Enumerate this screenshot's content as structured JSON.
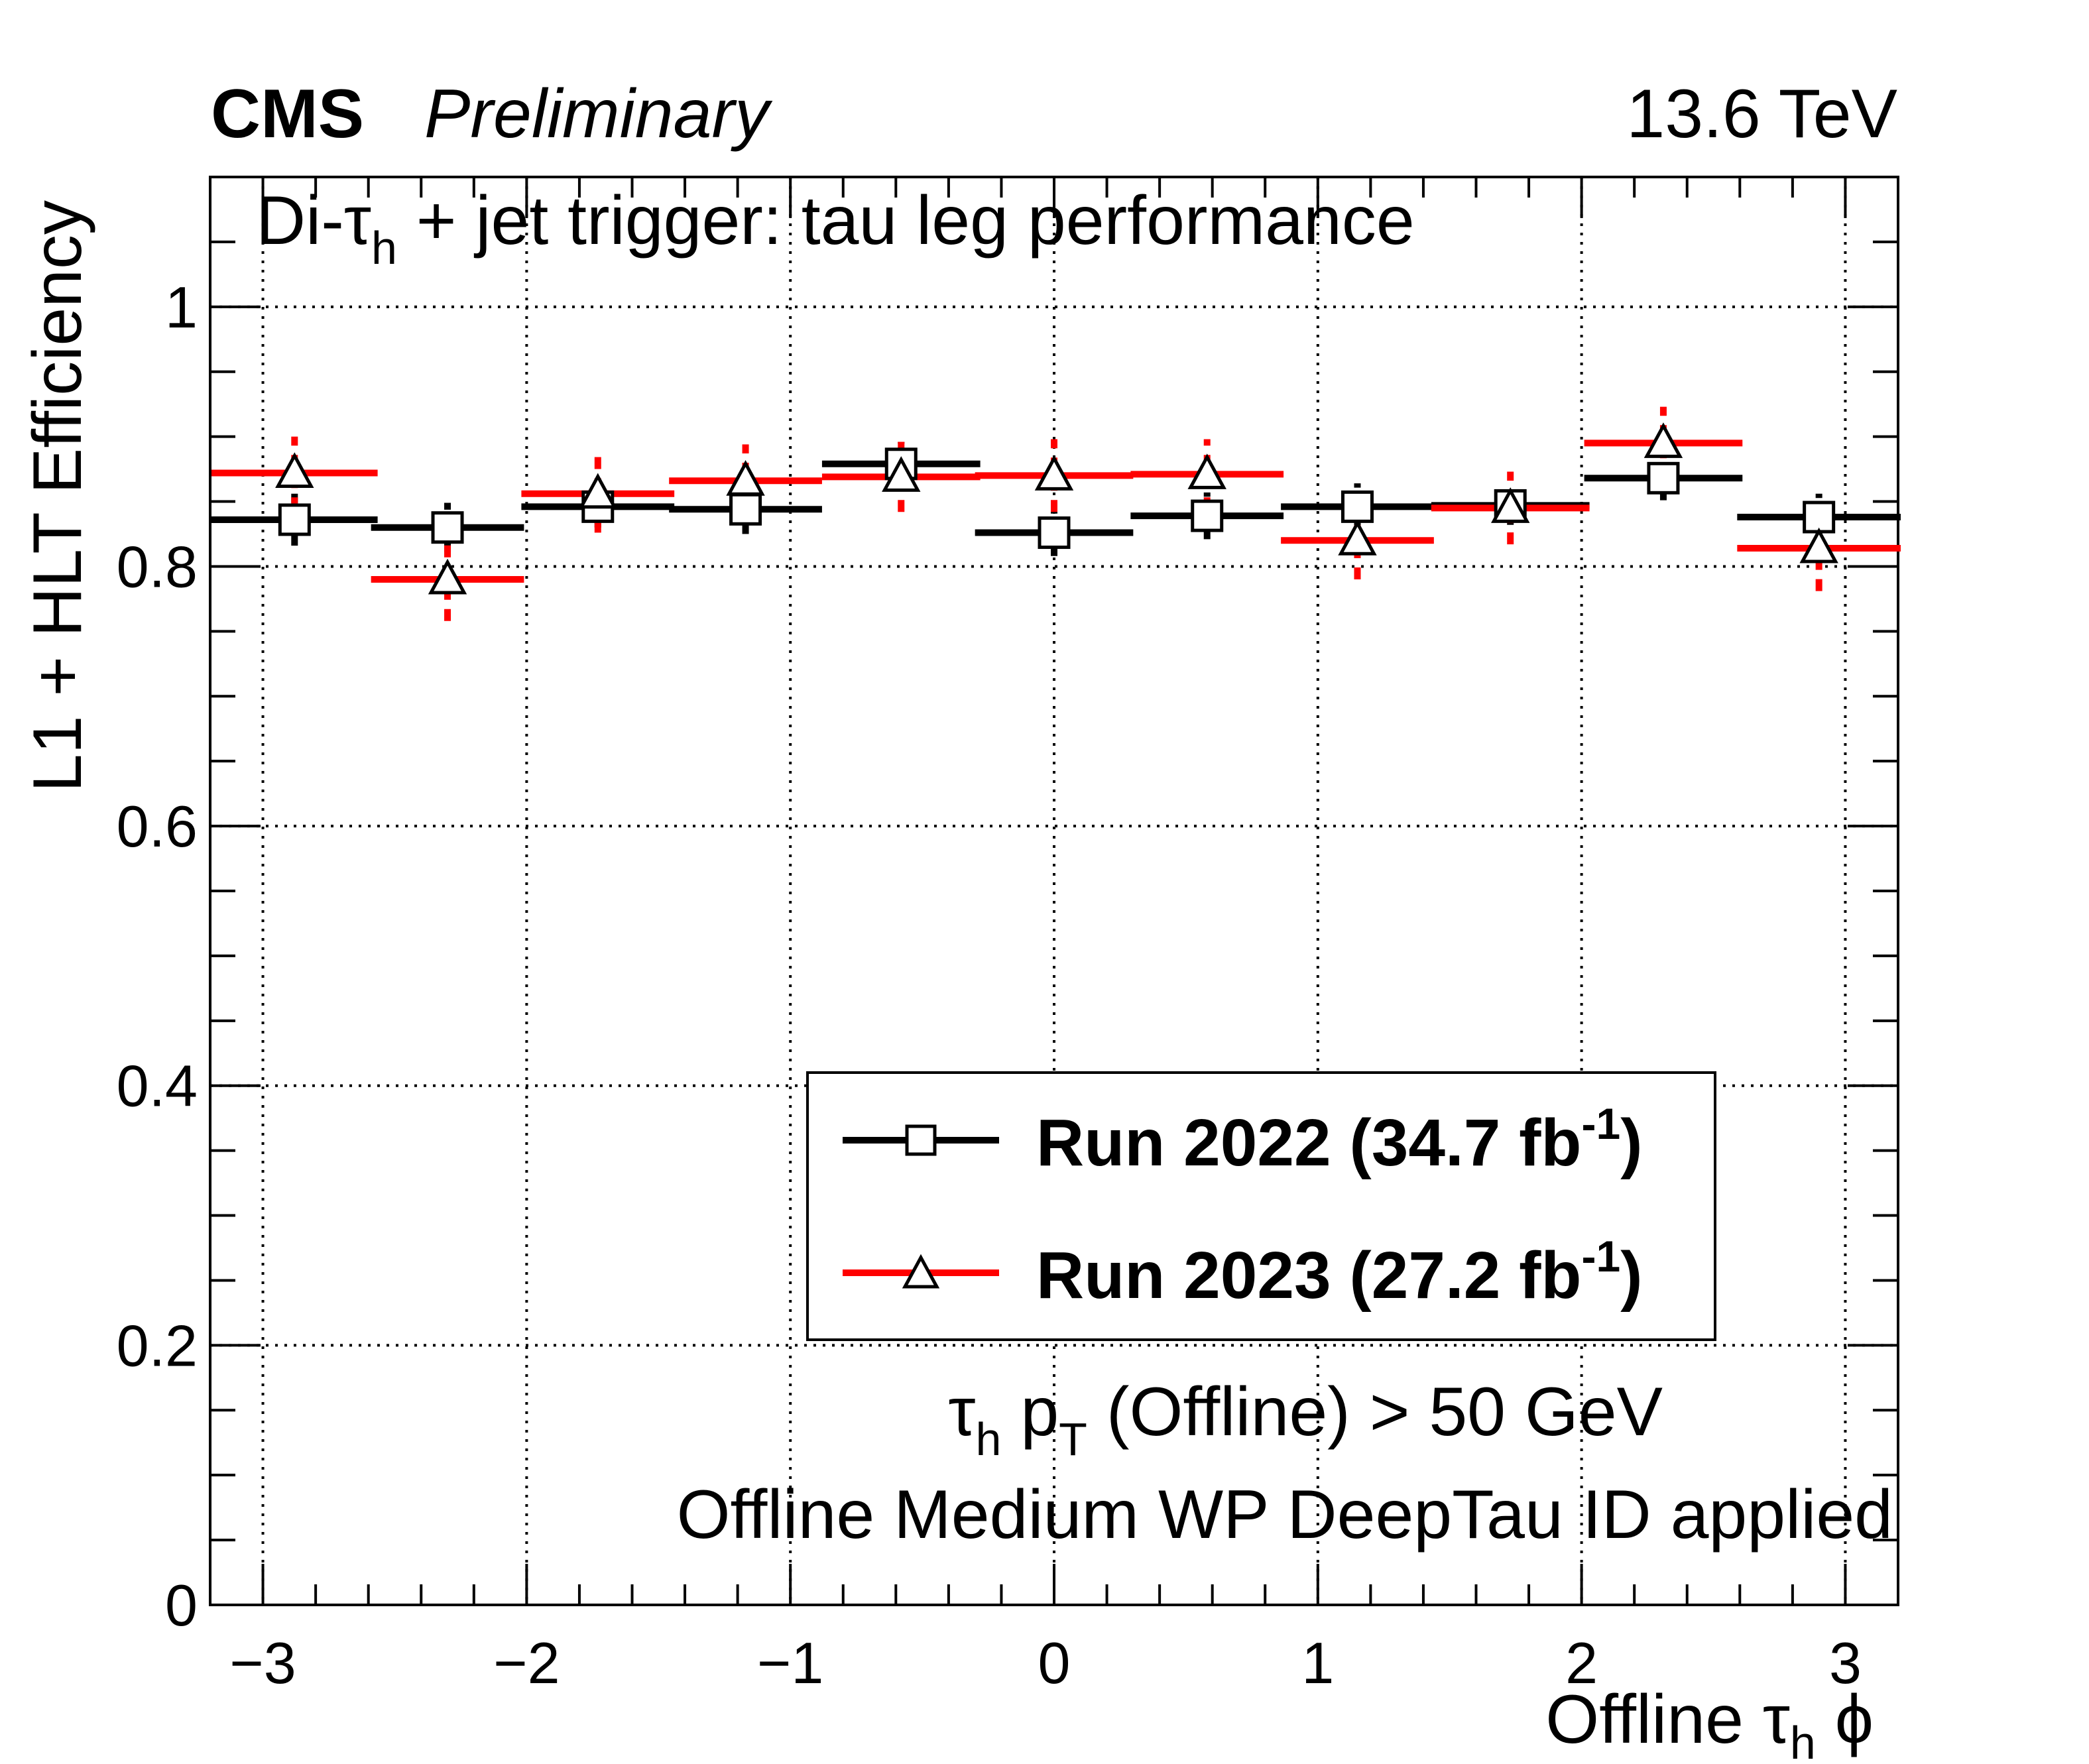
{
  "header": {
    "experiment": "CMS",
    "status": "Preliminary",
    "energy": "13.6 TeV"
  },
  "colors": {
    "series_2022": "#000000",
    "series_2023": "#ff0000"
  },
  "chart_data": {
    "type": "scatter",
    "title": "Di-τh + jet trigger: tau leg performance",
    "title_parts": {
      "prefix": "Di-τ",
      "sub": "h",
      "suffix": " + jet trigger: tau leg performance"
    },
    "xlabel": "Offline τh ϕ",
    "xlabel_parts": {
      "prefix": "Offline τ",
      "sub": "h",
      "suffix": " ϕ"
    },
    "ylabel": "L1 + HLT Efficiency",
    "xlim": [
      -3.2,
      3.2
    ],
    "ylim": [
      0,
      1.1
    ],
    "xticks": [
      -3,
      -2,
      -1,
      0,
      1,
      2,
      3
    ],
    "xtick_labels": [
      "−3",
      "−2",
      "−1",
      "0",
      "1",
      "2",
      "3"
    ],
    "yticks": [
      0,
      0.2,
      0.4,
      0.6,
      0.8,
      1
    ],
    "ytick_labels": [
      "0",
      "0.2",
      "0.4",
      "0.6",
      "0.8",
      "1"
    ],
    "grid": true,
    "legend_position": "center-right",
    "series": [
      {
        "name": "Run 2022 (34.7 fb-1)",
        "label_main": "Run 2022 (34.7 fb",
        "label_sup": "-1",
        "label_end": ")",
        "marker": "open-square",
        "color": "#000000",
        "x": [
          -2.88,
          -2.3,
          -1.73,
          -1.17,
          -0.58,
          0.0,
          0.58,
          1.15,
          1.73,
          2.31,
          2.9
        ],
        "xerr": [
          0.315,
          0.29,
          0.29,
          0.29,
          0.3,
          0.3,
          0.29,
          0.29,
          0.3,
          0.3,
          0.31
        ],
        "y": [
          0.836,
          0.83,
          0.846,
          0.844,
          0.879,
          0.826,
          0.839,
          0.846,
          0.847,
          0.868,
          0.838
        ],
        "yerr": [
          0.02,
          0.019,
          0.016,
          0.019,
          0.017,
          0.018,
          0.018,
          0.018,
          0.015,
          0.017,
          0.018
        ]
      },
      {
        "name": "Run 2023 (27.2 fb-1)",
        "label_main": "Run 2023 (27.2 fb",
        "label_sup": "-1",
        "label_end": ")",
        "marker": "open-triangle",
        "color": "#ff0000",
        "x": [
          -2.88,
          -2.3,
          -1.73,
          -1.17,
          -0.58,
          0.0,
          0.58,
          1.15,
          1.73,
          2.31,
          2.9
        ],
        "xerr": [
          0.315,
          0.29,
          0.29,
          0.29,
          0.3,
          0.3,
          0.29,
          0.29,
          0.3,
          0.3,
          0.31
        ],
        "y": [
          0.872,
          0.79,
          0.856,
          0.866,
          0.869,
          0.87,
          0.871,
          0.82,
          0.845,
          0.895,
          0.814
        ],
        "yerr": [
          0.028,
          0.032,
          0.03,
          0.028,
          0.027,
          0.028,
          0.027,
          0.03,
          0.028,
          0.028,
          0.033
        ]
      }
    ],
    "annotations": [
      {
        "text": "τh pT (Offline) > 50 GeV",
        "parts": {
          "a": "τ",
          "a_sub": "h",
          "b": " p",
          "b_sub": "T",
          "c": " (Offline) > 50 GeV"
        }
      },
      {
        "text": "Offline Medium WP DeepTau ID applied"
      }
    ]
  }
}
